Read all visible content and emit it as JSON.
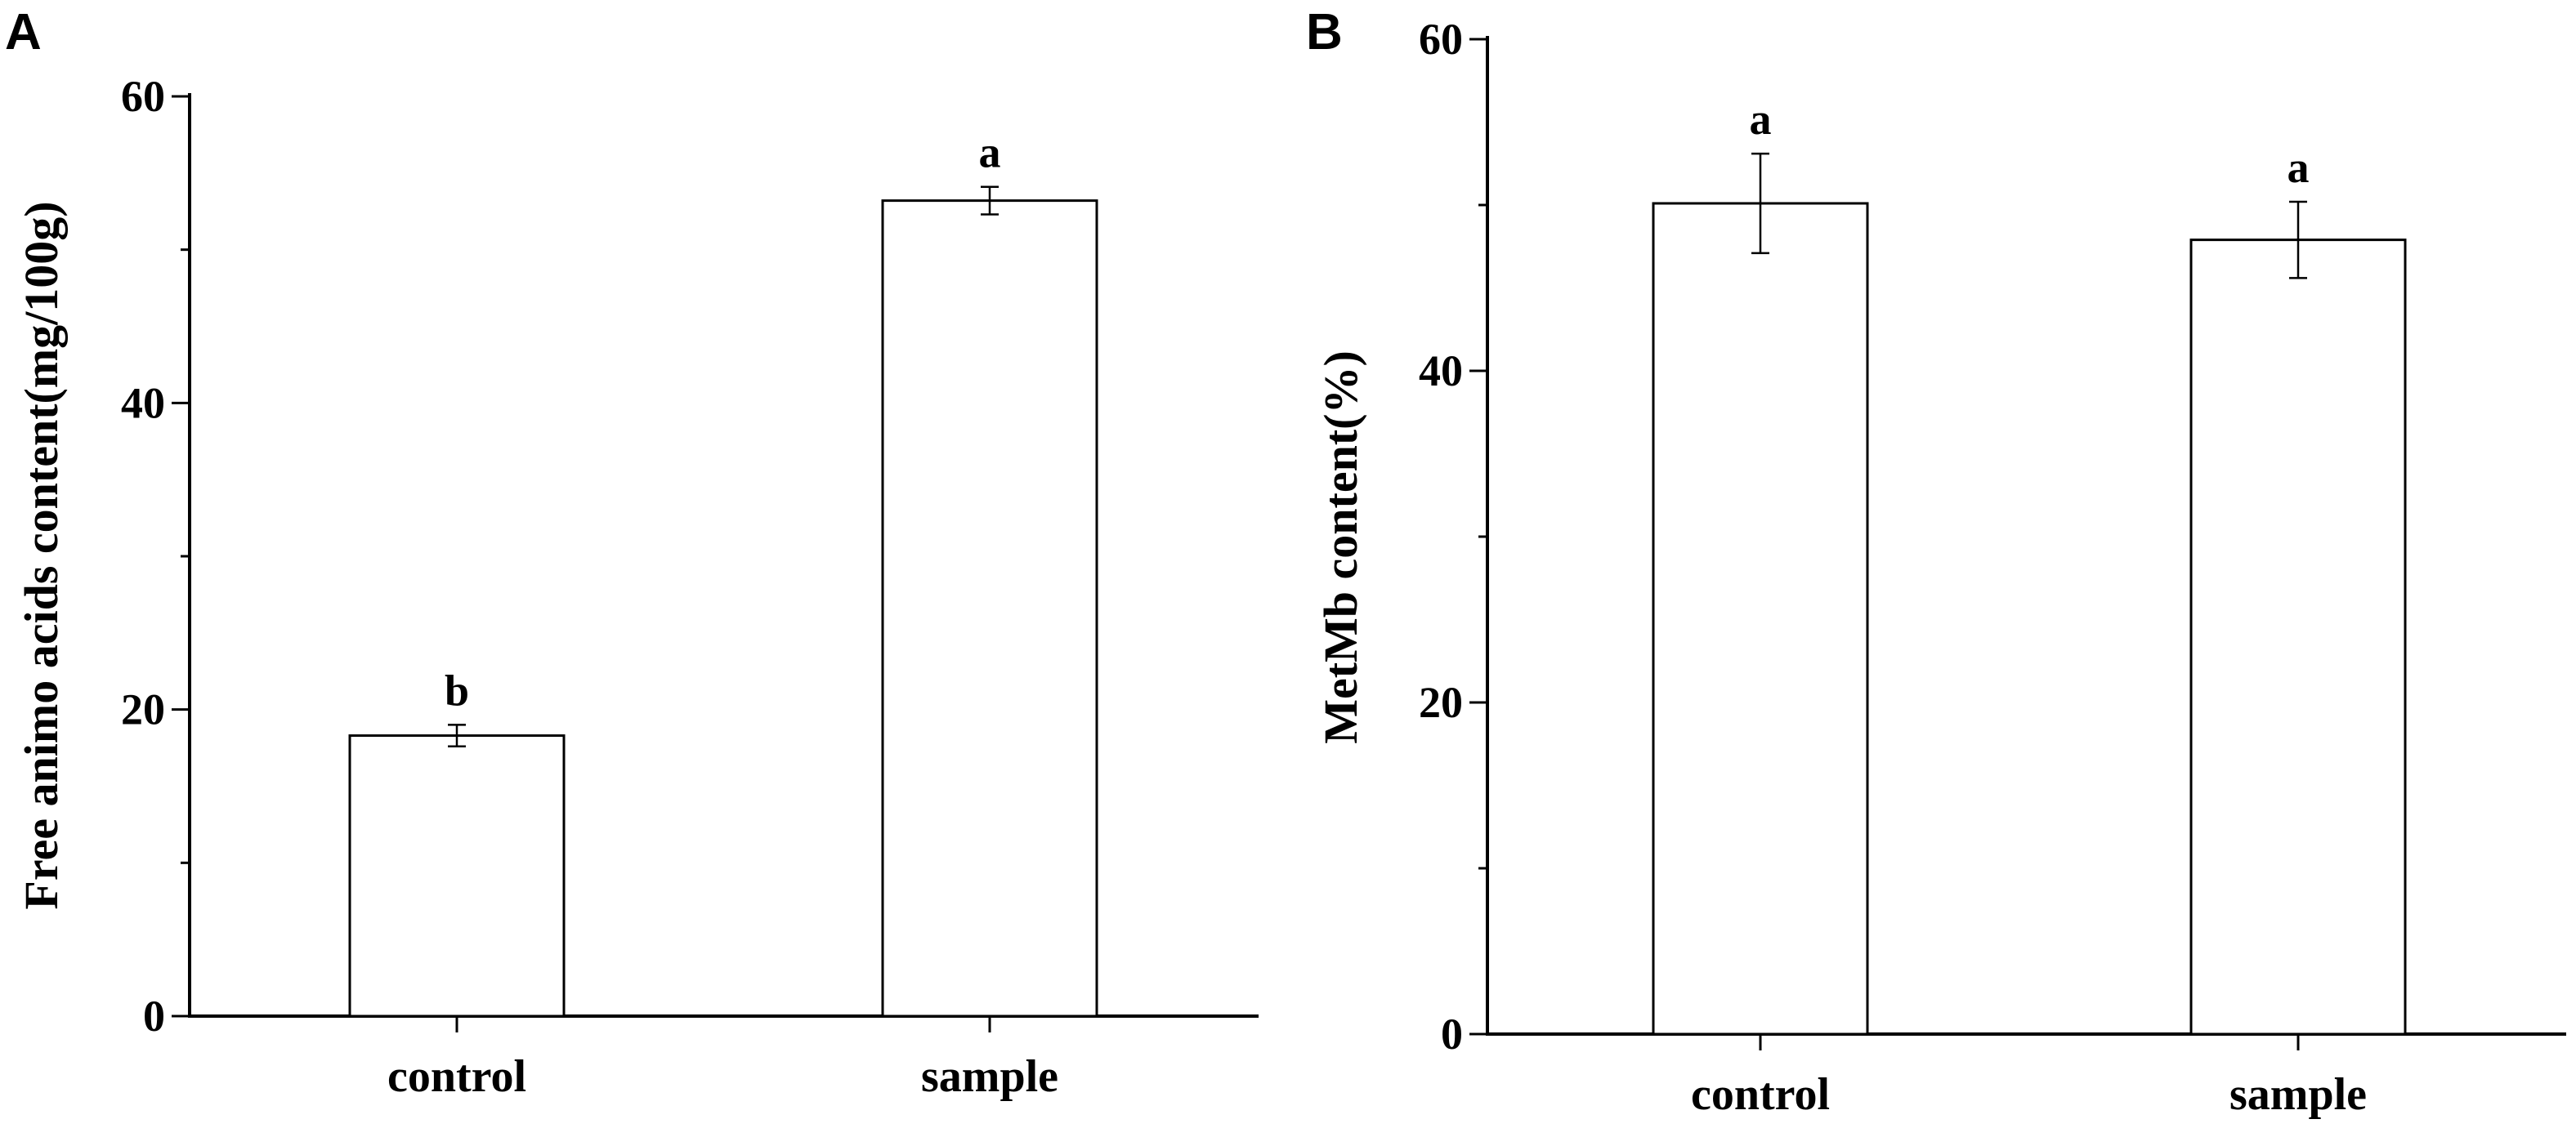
{
  "chart_data": [
    {
      "type": "bar",
      "panel_label": "A",
      "categories": [
        "control",
        "sample"
      ],
      "values": [
        18.3,
        53.2
      ],
      "error": [
        0.7,
        0.9
      ],
      "significance_labels": [
        "b",
        "a"
      ],
      "ylabel": "Free animo acids content(mg/100g)",
      "xlabel": "",
      "ylim": [
        0,
        60
      ],
      "yticks": [
        0,
        20,
        40,
        60
      ],
      "yticks_labels": [
        "0",
        "20",
        "40",
        "60"
      ],
      "minor_ticks": [
        10,
        30,
        50
      ],
      "grid": false,
      "bar_fill": "#ffffff",
      "bar_edge": "#000000"
    },
    {
      "type": "bar",
      "panel_label": "B",
      "categories": [
        "control",
        "sample"
      ],
      "values": [
        50.1,
        47.9
      ],
      "error": [
        3.0,
        2.3
      ],
      "significance_labels": [
        "a",
        "a"
      ],
      "ylabel": "MetMb content(%)",
      "xlabel": "",
      "ylim": [
        0,
        60
      ],
      "yticks": [
        0,
        20,
        40,
        60
      ],
      "yticks_labels": [
        "0",
        "20",
        "40",
        "60"
      ],
      "minor_ticks": [
        10,
        30,
        50
      ],
      "grid": false,
      "bar_fill": "#ffffff",
      "bar_edge": "#000000"
    }
  ]
}
